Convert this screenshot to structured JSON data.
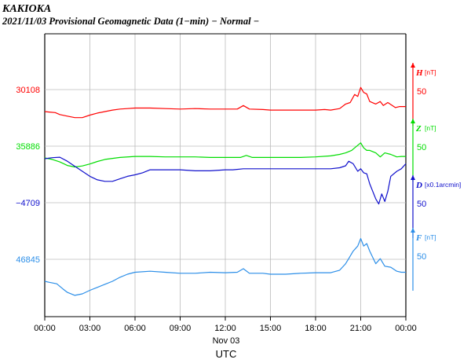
{
  "header": {
    "station": "KAKIOKA",
    "subtitle": "2021/11/03  Provisional Geomagnetic Data (1−min)  − Normal −"
  },
  "chart_data": {
    "type": "line",
    "xlabel": "UTC",
    "date_label": "Nov 03",
    "x_ticks": [
      "00:00",
      "03:00",
      "06:00",
      "09:00",
      "12:00",
      "15:00",
      "18:00",
      "21:00",
      "00:00"
    ],
    "x_range_hours": [
      0,
      24
    ],
    "grid": true,
    "colors": {
      "H": "#ff0000",
      "Z": "#00dd00",
      "D": "#1010cc",
      "F": "#2b8ee8"
    },
    "series": [
      {
        "key": "H",
        "name": "H",
        "unit": "[nT]",
        "scale_label": "50",
        "left_label": "30108",
        "points": [
          [
            0,
            0
          ],
          [
            0.3,
            -1
          ],
          [
            0.7,
            -2
          ],
          [
            1.0,
            -6
          ],
          [
            1.5,
            -9
          ],
          [
            2.0,
            -12
          ],
          [
            2.5,
            -12
          ],
          [
            3.0,
            -7
          ],
          [
            3.5,
            -3
          ],
          [
            4.0,
            0
          ],
          [
            4.5,
            3
          ],
          [
            5.0,
            5
          ],
          [
            5.5,
            6
          ],
          [
            6.0,
            7
          ],
          [
            7.0,
            7
          ],
          [
            8.0,
            6
          ],
          [
            9.0,
            5
          ],
          [
            10.0,
            6
          ],
          [
            11.0,
            5
          ],
          [
            12.0,
            5
          ],
          [
            12.8,
            5
          ],
          [
            13.2,
            12
          ],
          [
            13.6,
            5
          ],
          [
            14.5,
            4
          ],
          [
            15.0,
            3
          ],
          [
            16.0,
            3
          ],
          [
            17.0,
            3
          ],
          [
            18.0,
            3
          ],
          [
            18.6,
            4
          ],
          [
            19.0,
            3
          ],
          [
            19.6,
            6
          ],
          [
            20.0,
            15
          ],
          [
            20.3,
            18
          ],
          [
            20.6,
            34
          ],
          [
            20.8,
            30
          ],
          [
            21.0,
            48
          ],
          [
            21.2,
            38
          ],
          [
            21.4,
            35
          ],
          [
            21.6,
            20
          ],
          [
            22.0,
            15
          ],
          [
            22.3,
            20
          ],
          [
            22.5,
            12
          ],
          [
            22.8,
            18
          ],
          [
            23.0,
            14
          ],
          [
            23.3,
            8
          ],
          [
            23.6,
            10
          ],
          [
            24.0,
            10
          ]
        ]
      },
      {
        "key": "Z",
        "name": "Z",
        "unit": "[nT]",
        "scale_label": "50",
        "left_label": "35886",
        "points": [
          [
            0,
            0
          ],
          [
            0.5,
            -3
          ],
          [
            1.0,
            -8
          ],
          [
            1.5,
            -15
          ],
          [
            2.0,
            -18
          ],
          [
            2.5,
            -16
          ],
          [
            3.0,
            -12
          ],
          [
            3.5,
            -7
          ],
          [
            4.0,
            -3
          ],
          [
            5.0,
            1
          ],
          [
            6.0,
            3
          ],
          [
            7.0,
            3
          ],
          [
            8.0,
            2
          ],
          [
            9.0,
            2
          ],
          [
            10.0,
            2
          ],
          [
            11.0,
            1
          ],
          [
            12.0,
            1
          ],
          [
            13.0,
            1
          ],
          [
            13.4,
            5
          ],
          [
            13.8,
            1
          ],
          [
            15.0,
            1
          ],
          [
            16.0,
            1
          ],
          [
            17.0,
            1
          ],
          [
            18.0,
            2
          ],
          [
            19.0,
            4
          ],
          [
            19.6,
            7
          ],
          [
            20.0,
            10
          ],
          [
            20.4,
            15
          ],
          [
            20.6,
            20
          ],
          [
            21.0,
            30
          ],
          [
            21.2,
            20
          ],
          [
            21.4,
            15
          ],
          [
            21.6,
            15
          ],
          [
            22.0,
            10
          ],
          [
            22.3,
            2
          ],
          [
            22.6,
            10
          ],
          [
            23.0,
            7
          ],
          [
            23.4,
            2
          ],
          [
            23.7,
            3
          ],
          [
            24.0,
            3
          ]
        ]
      },
      {
        "key": "D",
        "name": "D",
        "unit": "[x0.1arcmin]",
        "scale_label": "50",
        "left_label": "−4709",
        "points": [
          [
            0,
            0
          ],
          [
            0.5,
            2
          ],
          [
            1.0,
            3
          ],
          [
            1.5,
            -5
          ],
          [
            2.0,
            -15
          ],
          [
            2.5,
            -25
          ],
          [
            3.0,
            -35
          ],
          [
            3.5,
            -42
          ],
          [
            4.0,
            -45
          ],
          [
            4.5,
            -45
          ],
          [
            5.0,
            -40
          ],
          [
            5.5,
            -35
          ],
          [
            6.0,
            -32
          ],
          [
            6.5,
            -28
          ],
          [
            7.0,
            -22
          ],
          [
            8.0,
            -22
          ],
          [
            9.0,
            -22
          ],
          [
            10.0,
            -24
          ],
          [
            11.0,
            -24
          ],
          [
            12.0,
            -22
          ],
          [
            12.5,
            -22
          ],
          [
            13.2,
            -20
          ],
          [
            14.0,
            -20
          ],
          [
            15.0,
            -20
          ],
          [
            16.0,
            -20
          ],
          [
            17.0,
            -20
          ],
          [
            18.0,
            -20
          ],
          [
            19.0,
            -20
          ],
          [
            19.6,
            -18
          ],
          [
            20.0,
            -14
          ],
          [
            20.2,
            -5
          ],
          [
            20.5,
            -10
          ],
          [
            20.8,
            -25
          ],
          [
            21.0,
            -20
          ],
          [
            21.2,
            -28
          ],
          [
            21.4,
            -30
          ],
          [
            21.6,
            -50
          ],
          [
            22.0,
            -80
          ],
          [
            22.2,
            -90
          ],
          [
            22.4,
            -70
          ],
          [
            22.6,
            -85
          ],
          [
            22.8,
            -65
          ],
          [
            23.0,
            -35
          ],
          [
            23.4,
            -25
          ],
          [
            23.7,
            -20
          ],
          [
            24.0,
            -10
          ]
        ]
      },
      {
        "key": "F",
        "name": "F",
        "unit": "[nT]",
        "scale_label": "50",
        "left_label": "46845",
        "points": [
          [
            0,
            0
          ],
          [
            0.3,
            -2
          ],
          [
            0.8,
            -5
          ],
          [
            1.2,
            -15
          ],
          [
            1.5,
            -22
          ],
          [
            2.0,
            -28
          ],
          [
            2.5,
            -25
          ],
          [
            3.0,
            -18
          ],
          [
            3.5,
            -12
          ],
          [
            4.0,
            -6
          ],
          [
            4.5,
            0
          ],
          [
            5.0,
            8
          ],
          [
            5.5,
            14
          ],
          [
            6.0,
            18
          ],
          [
            7.0,
            20
          ],
          [
            8.0,
            18
          ],
          [
            9.0,
            16
          ],
          [
            10.0,
            16
          ],
          [
            11.0,
            18
          ],
          [
            12.0,
            17
          ],
          [
            12.8,
            18
          ],
          [
            13.2,
            25
          ],
          [
            13.6,
            16
          ],
          [
            14.5,
            16
          ],
          [
            15.0,
            14
          ],
          [
            16.0,
            14
          ],
          [
            17.0,
            16
          ],
          [
            18.0,
            17
          ],
          [
            19.0,
            17
          ],
          [
            19.6,
            22
          ],
          [
            20.0,
            35
          ],
          [
            20.2,
            45
          ],
          [
            20.5,
            60
          ],
          [
            20.8,
            70
          ],
          [
            21.0,
            85
          ],
          [
            21.2,
            70
          ],
          [
            21.4,
            75
          ],
          [
            21.6,
            60
          ],
          [
            22.0,
            35
          ],
          [
            22.3,
            45
          ],
          [
            22.6,
            30
          ],
          [
            23.0,
            28
          ],
          [
            23.4,
            20
          ],
          [
            23.7,
            18
          ],
          [
            24.0,
            18
          ]
        ]
      }
    ]
  }
}
